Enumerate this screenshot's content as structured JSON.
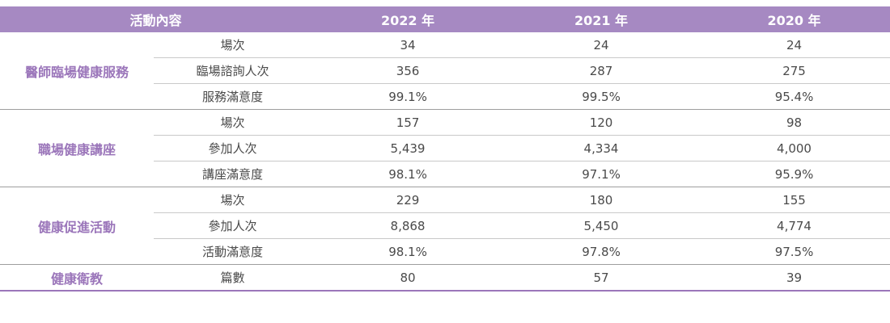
{
  "header": {
    "category": "活動內容",
    "years": [
      "2022 年",
      "2021 年",
      "2020 年"
    ]
  },
  "groups": [
    {
      "name": "醫師臨場健康服務",
      "rows": [
        {
          "label": "場次",
          "values": [
            "34",
            "24",
            "24"
          ]
        },
        {
          "label": "臨場諮詢人次",
          "values": [
            "356",
            "287",
            "275"
          ]
        },
        {
          "label": "服務滿意度",
          "values": [
            "99.1%",
            "99.5%",
            "95.4%"
          ]
        }
      ]
    },
    {
      "name": "職場健康講座",
      "rows": [
        {
          "label": "場次",
          "values": [
            "157",
            "120",
            "98"
          ]
        },
        {
          "label": "參加人次",
          "values": [
            "5,439",
            "4,334",
            "4,000"
          ]
        },
        {
          "label": "講座滿意度",
          "values": [
            "98.1%",
            "97.1%",
            "95.9%"
          ]
        }
      ]
    },
    {
      "name": "健康促進活動",
      "rows": [
        {
          "label": "場次",
          "values": [
            "229",
            "180",
            "155"
          ]
        },
        {
          "label": "參加人次",
          "values": [
            "8,868",
            "5,450",
            "4,774"
          ]
        },
        {
          "label": "活動滿意度",
          "values": [
            "98.1%",
            "97.8%",
            "97.5%"
          ]
        }
      ]
    },
    {
      "name": "健康衛教",
      "rows": [
        {
          "label": "篇數",
          "values": [
            "80",
            "57",
            "39"
          ]
        }
      ]
    }
  ],
  "colors": {
    "header_bg": "#a689c2",
    "category_text": "#9b76ba"
  }
}
